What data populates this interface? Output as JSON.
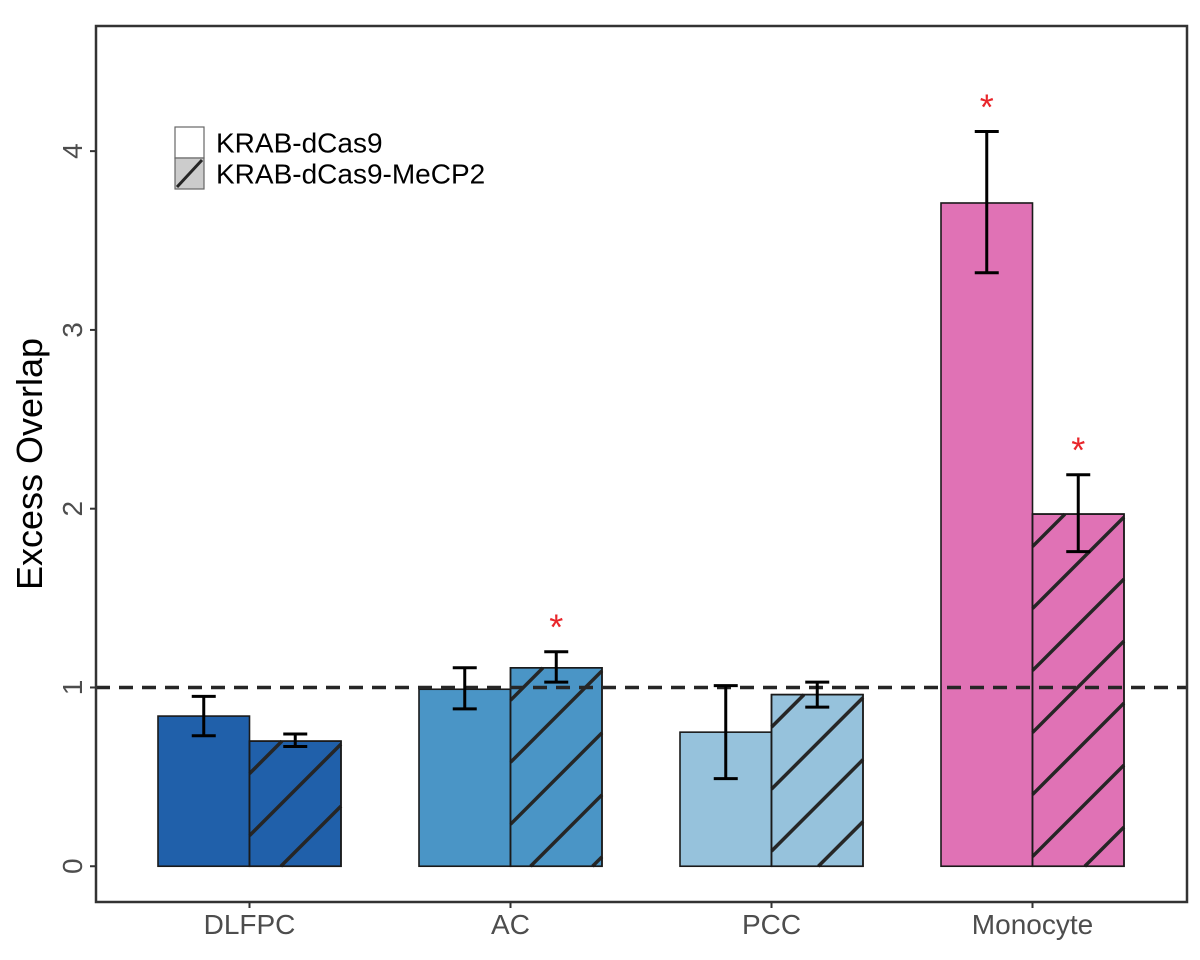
{
  "chart_data": {
    "type": "bar",
    "title": "",
    "xlabel": "",
    "ylabel": "Excess Overlap",
    "categories": [
      "DLFPC",
      "AC",
      "PCC",
      "Monocyte"
    ],
    "category_colors": [
      "#2060aa",
      "#4a95c6",
      "#96c2dc",
      "#e072b5"
    ],
    "ylim": [
      -0.2,
      4.7
    ],
    "y_ticks": [
      {
        "value": 0,
        "label": "0"
      },
      {
        "value": 1,
        "label": "1"
      },
      {
        "value": 2,
        "label": "2"
      },
      {
        "value": 3,
        "label": "3"
      },
      {
        "value": 4,
        "label": "4"
      }
    ],
    "reference_line": {
      "value": 1,
      "style": "dashed"
    },
    "grid": false,
    "legend_position": "top-left",
    "series": [
      {
        "name": "KRAB-dCas9",
        "pattern": "solid",
        "values": [
          0.84,
          0.99,
          0.75,
          3.71
        ],
        "error_low": [
          0.73,
          0.88,
          0.49,
          3.32
        ],
        "error_high": [
          0.95,
          1.11,
          1.01,
          4.11
        ],
        "significant": [
          false,
          false,
          false,
          true
        ]
      },
      {
        "name": "KRAB-dCas9-MeCP2",
        "pattern": "hatched",
        "values": [
          0.7,
          1.11,
          0.96,
          1.97
        ],
        "error_low": [
          0.67,
          1.03,
          0.89,
          1.76
        ],
        "error_high": [
          0.74,
          1.2,
          1.03,
          2.19
        ],
        "significant": [
          false,
          true,
          false,
          true
        ]
      }
    ],
    "significance_marker": "*",
    "significance_color": "#e8262b"
  }
}
